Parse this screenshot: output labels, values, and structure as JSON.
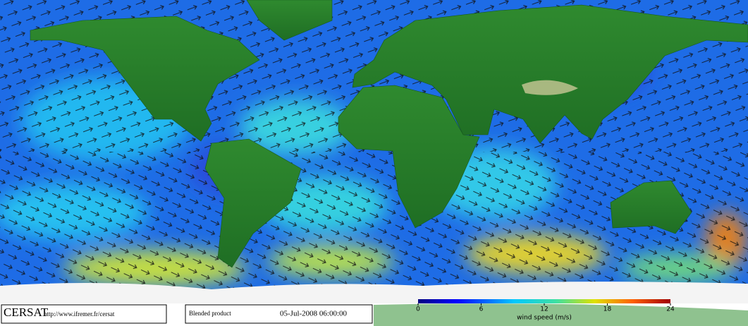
{
  "logo": "CERSAT",
  "url": "http://www.ifremer.fr/cersat",
  "product": "Blended product",
  "date": "05-Jul-2008 06:00:00",
  "colorbar": {
    "label": "wind speed (m/s)",
    "lim": [
      0,
      24
    ],
    "ticks": [
      0,
      6,
      12,
      18,
      24
    ]
  }
}
